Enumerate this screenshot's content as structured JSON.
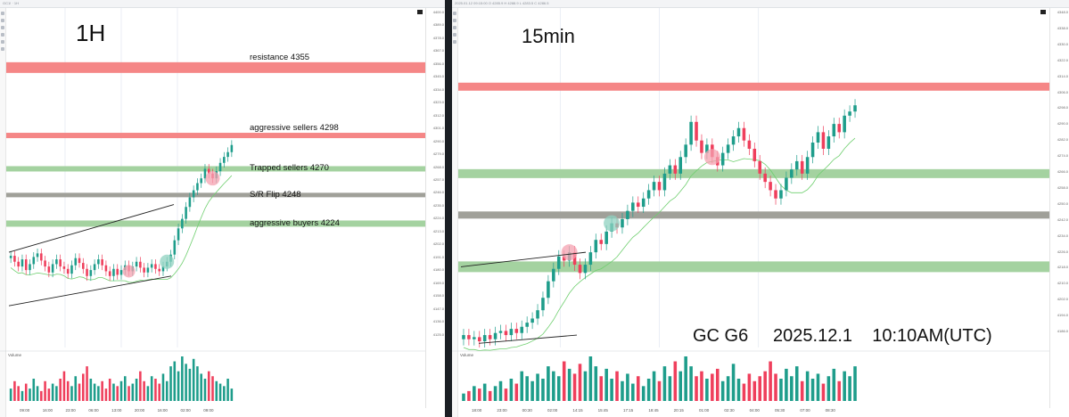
{
  "left": {
    "topbar": "GC1! · 1H",
    "timeframe_label": "1H",
    "zones": [
      {
        "label": "resistance   4355",
        "price": 4355,
        "color": "#f47f7f",
        "thickness": 12
      },
      {
        "label": "aggressive sellers   4298",
        "price": 4298,
        "color": "#f47f7f",
        "thickness": 6
      },
      {
        "label": "Trapped sellers 4270",
        "price": 4270,
        "color": "#9fd09b",
        "thickness": 6
      },
      {
        "label": "S/R Flip   4248",
        "price": 4248,
        "color": "#9b9b94",
        "thickness": 5
      },
      {
        "label": "aggressive buyers 4224",
        "price": 4224,
        "color": "#9fd09b",
        "thickness": 7
      }
    ],
    "ticks": [
      "4400.0",
      "4389.0",
      "4378.0",
      "4367.0",
      "4356.0",
      "4345.0",
      "4334.0",
      "4323.0",
      "4312.0",
      "4301.0",
      "4290.0",
      "4279.0",
      "4268.0",
      "4257.0",
      "4246.0",
      "4235.0",
      "4224.0",
      "4213.0",
      "4202.0",
      "4191.0",
      "4180.0",
      "4169.0",
      "4158.0",
      "4147.0",
      "4136.0",
      "4125.0"
    ],
    "time_ticks": [
      "09:00",
      "16:00",
      "23:00",
      "06:00",
      "13:00",
      "20:00",
      "16:00",
      "02:00",
      "09:00"
    ],
    "volume_label": "Volume"
  },
  "right": {
    "topbar": "2025.01.12 09:15:00 O 4285.9 H 4288.9 L 4283.5 C 4286.5",
    "timeframe_label": "15min",
    "caption": "GC G6     2025.12.1    10:10AM(UTC)",
    "zones": [
      {
        "price": 4312,
        "color": "#f47f7f",
        "thickness": 9
      },
      {
        "price": 4270,
        "color": "#9fd09b",
        "thickness": 10
      },
      {
        "price": 4250,
        "color": "#9b9b94",
        "thickness": 8
      },
      {
        "price": 4225,
        "color": "#9fd09b",
        "thickness": 12
      }
    ],
    "ticks": [
      "4348.0",
      "4338.0",
      "4330.0",
      "4322.0",
      "4314.0",
      "4306.0",
      "4298.0",
      "4290.0",
      "4282.0",
      "4274.0",
      "4266.0",
      "4258.0",
      "4250.0",
      "4242.0",
      "4234.0",
      "4226.0",
      "4218.0",
      "4210.0",
      "4202.0",
      "4194.0",
      "4186.0"
    ],
    "time_ticks": [
      "18:00",
      "23:00",
      "00:30",
      "02:00",
      "14:15",
      "15:45",
      "17:15",
      "18:45",
      "20:15",
      "01:00",
      "02:30",
      "04:00",
      "05:30",
      "07:00",
      "08:30"
    ],
    "volume_label": "Volume"
  },
  "chart_data": [
    {
      "type": "candlestick",
      "title": "1H",
      "ylim": [
        4120,
        4405
      ],
      "zones": [
        4355,
        4298,
        4270,
        4248,
        4224
      ],
      "closes": [
        4197,
        4192,
        4188,
        4194,
        4185,
        4190,
        4196,
        4199,
        4193,
        4188,
        4183,
        4190,
        4194,
        4188,
        4186,
        4182,
        4189,
        4195,
        4191,
        4186,
        4180,
        4185,
        4190,
        4194,
        4189,
        4184,
        4180,
        4186,
        4181,
        4185,
        4189,
        4184,
        4188,
        4192,
        4187,
        4183,
        4187,
        4190,
        4186,
        4184,
        4188,
        4192,
        4198,
        4210,
        4220,
        4228,
        4238,
        4246,
        4252,
        4258,
        4262,
        4270,
        4266,
        4262,
        4268,
        4275,
        4280,
        4284,
        4290
      ],
      "volume": [
        5,
        8,
        6,
        4,
        7,
        5,
        9,
        6,
        4,
        8,
        5,
        7,
        6,
        9,
        12,
        8,
        6,
        10,
        7,
        11,
        14,
        9,
        7,
        6,
        8,
        5,
        9,
        7,
        6,
        8,
        10,
        6,
        7,
        9,
        12,
        8,
        6,
        10,
        9,
        7,
        11,
        8,
        14,
        16,
        12,
        18,
        15,
        13,
        17,
        14,
        11,
        9,
        12,
        10,
        8,
        7,
        6,
        9,
        5
      ]
    },
    {
      "type": "candlestick",
      "title": "15min",
      "ylim": [
        4186,
        4350
      ],
      "zones": [
        4312,
        4270,
        4250,
        4225
      ],
      "closes": [
        4192,
        4190,
        4191,
        4189,
        4192,
        4190,
        4193,
        4194,
        4192,
        4195,
        4193,
        4196,
        4198,
        4200,
        4204,
        4210,
        4218,
        4224,
        4230,
        4228,
        4232,
        4226,
        4222,
        4226,
        4232,
        4238,
        4236,
        4242,
        4246,
        4244,
        4248,
        4252,
        4256,
        4254,
        4258,
        4262,
        4266,
        4262,
        4270,
        4274,
        4270,
        4278,
        4284,
        4295,
        4286,
        4280,
        4284,
        4278,
        4274,
        4280,
        4284,
        4288,
        4292,
        4286,
        4282,
        4276,
        4270,
        4266,
        4262,
        4258,
        4262,
        4268,
        4272,
        4276,
        4270,
        4278,
        4285,
        4290,
        4282,
        4288,
        4294,
        4290,
        4298,
        4300,
        4303
      ],
      "volume": [
        3,
        4,
        6,
        5,
        7,
        4,
        6,
        8,
        5,
        9,
        7,
        12,
        10,
        8,
        11,
        9,
        14,
        12,
        10,
        16,
        13,
        11,
        15,
        12,
        18,
        14,
        10,
        13,
        9,
        12,
        8,
        11,
        7,
        10,
        6,
        9,
        12,
        8,
        14,
        10,
        16,
        12,
        18,
        14,
        10,
        12,
        9,
        11,
        13,
        8,
        10,
        15,
        9,
        7,
        11,
        8,
        10,
        12,
        16,
        11,
        9,
        13,
        10,
        14,
        8,
        12,
        9,
        11,
        7,
        10,
        13,
        8,
        12,
        10,
        14
      ]
    }
  ],
  "colors": {
    "up": "#1e9d8b",
    "down": "#ef3f5c",
    "ma": "#6fcf6f",
    "highlight_red": "#f4a1b0",
    "highlight_green": "#8fd1c0"
  }
}
